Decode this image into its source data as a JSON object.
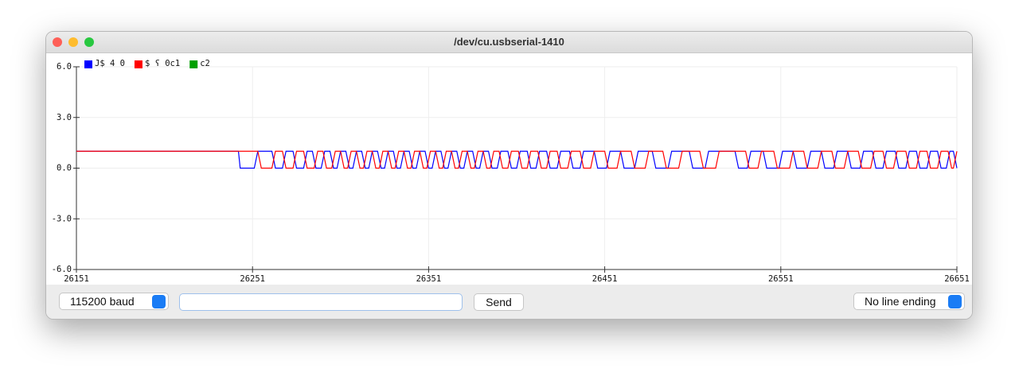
{
  "window": {
    "title": "/dev/cu.usbserial-1410"
  },
  "chart_data": {
    "type": "line",
    "xlim": [
      26151,
      26651
    ],
    "xticks": [
      26151,
      26251,
      26351,
      26451,
      26551,
      26651
    ],
    "ylim": [
      -6,
      6
    ],
    "yticks": [
      {
        "value": -6,
        "label": "-6.0"
      },
      {
        "value": -3,
        "label": "-3.0"
      },
      {
        "value": 0,
        "label": "0.0"
      },
      {
        "value": 3,
        "label": "3.0"
      },
      {
        "value": 6,
        "label": "6.0"
      }
    ],
    "grid": true,
    "legend": "top-left",
    "series": [
      {
        "name": "J$ 4 0",
        "color": "#0000ff",
        "x": [
          26151,
          26243,
          26244,
          26252,
          26254,
          26262,
          26264,
          26268,
          26270,
          26274,
          26276,
          26280,
          26282,
          26285,
          26287,
          26290,
          26292,
          26295,
          26297,
          26299,
          26301,
          26304,
          26306,
          26308,
          26310,
          26313,
          26315,
          26317,
          26319,
          26322,
          26324,
          26326,
          26328,
          26331,
          26333,
          26335,
          26337,
          26340,
          26342,
          26344,
          26346,
          26349,
          26351,
          26353,
          26355,
          26358,
          26360,
          26362,
          26364,
          26367,
          26369,
          26371,
          26373,
          26376,
          26378,
          26380,
          26382,
          26385,
          26387,
          26390,
          26392,
          26396,
          26398,
          26401,
          26403,
          26407,
          26409,
          26412,
          26414,
          26418,
          26420,
          26424,
          26426,
          26431,
          26433,
          26437,
          26439,
          26445,
          26447,
          26452,
          26454,
          26460,
          26462,
          26468,
          26470,
          26478,
          26480,
          26487,
          26489,
          26499,
          26501,
          26508,
          26510,
          26525,
          26527,
          26532,
          26534,
          26541,
          26543,
          26550,
          26552,
          26558,
          26560,
          26566,
          26568,
          26574,
          26576,
          26581,
          26583,
          26589,
          26591,
          26596,
          26598,
          26603,
          26605,
          26609,
          26611,
          26616,
          26618,
          26622,
          26624,
          26628,
          26630,
          26634,
          26636,
          26640,
          26642,
          26645,
          26647,
          26649,
          26651
        ],
        "values": [
          1,
          1,
          0,
          0,
          1,
          1,
          0,
          0,
          1,
          1,
          0,
          0,
          1,
          1,
          0,
          0,
          1,
          1,
          0,
          0,
          1,
          1,
          0,
          0,
          1,
          1,
          0,
          0,
          1,
          1,
          0,
          0,
          1,
          1,
          0,
          0,
          1,
          1,
          0,
          0,
          1,
          1,
          0,
          0,
          1,
          1,
          0,
          0,
          1,
          1,
          0,
          0,
          1,
          1,
          0,
          0,
          1,
          1,
          0,
          0,
          1,
          1,
          0,
          0,
          1,
          1,
          0,
          0,
          1,
          1,
          0,
          0,
          1,
          1,
          0,
          0,
          1,
          1,
          0,
          0,
          1,
          1,
          0,
          0,
          1,
          1,
          0,
          0,
          1,
          1,
          0,
          0,
          1,
          1,
          0,
          0,
          1,
          1,
          0,
          0,
          1,
          1,
          0,
          0,
          1,
          1,
          0,
          0,
          1,
          1,
          0,
          0,
          1,
          1,
          0,
          0,
          1,
          1,
          0,
          0,
          1,
          1,
          0,
          0,
          1,
          1,
          0,
          0,
          1,
          1,
          0
        ]
      },
      {
        "name": "$ ʕ 0c1",
        "color": "#ff0000",
        "x": [
          26151,
          26254,
          26256,
          26262,
          26264,
          26268,
          26270,
          26274,
          26276,
          26280,
          26282,
          26286,
          26288,
          26291,
          26293,
          26296,
          26298,
          26301,
          26303,
          26305,
          26307,
          26310,
          26312,
          26314,
          26316,
          26319,
          26321,
          26323,
          26325,
          26328,
          26330,
          26332,
          26334,
          26337,
          26339,
          26341,
          26343,
          26346,
          26348,
          26350,
          26352,
          26355,
          26357,
          26359,
          26361,
          26364,
          26366,
          26368,
          26370,
          26373,
          26375,
          26377,
          26379,
          26382,
          26384,
          26386,
          26388,
          26391,
          26393,
          26396,
          26398,
          26402,
          26404,
          26407,
          26409,
          26413,
          26415,
          26418,
          26420,
          26424,
          26426,
          26430,
          26432,
          26437,
          26439,
          26443,
          26445,
          26451,
          26453,
          26458,
          26460,
          26466,
          26468,
          26474,
          26476,
          26484,
          26486,
          26493,
          26495,
          26505,
          26507,
          26514,
          26516,
          26531,
          26533,
          26538,
          26540,
          26547,
          26549,
          26556,
          26558,
          26564,
          26566,
          26572,
          26574,
          26580,
          26582,
          26587,
          26589,
          26595,
          26597,
          26602,
          26604,
          26609,
          26611,
          26615,
          26617,
          26622,
          26624,
          26628,
          26630,
          26634,
          26636,
          26640,
          26642,
          26646,
          26648,
          26649,
          26651
        ],
        "values": [
          1,
          1,
          0,
          0,
          1,
          1,
          0,
          0,
          1,
          1,
          0,
          0,
          1,
          1,
          0,
          0,
          1,
          1,
          0,
          0,
          1,
          1,
          0,
          0,
          1,
          1,
          0,
          0,
          1,
          1,
          0,
          0,
          1,
          1,
          0,
          0,
          1,
          1,
          0,
          0,
          1,
          1,
          0,
          0,
          1,
          1,
          0,
          0,
          1,
          1,
          0,
          0,
          1,
          1,
          0,
          0,
          1,
          1,
          0,
          0,
          1,
          1,
          0,
          0,
          1,
          1,
          0,
          0,
          1,
          1,
          0,
          0,
          1,
          1,
          0,
          0,
          1,
          1,
          0,
          0,
          1,
          1,
          0,
          0,
          1,
          1,
          0,
          0,
          1,
          1,
          0,
          0,
          1,
          1,
          0,
          0,
          1,
          1,
          0,
          0,
          1,
          1,
          0,
          0,
          1,
          1,
          0,
          0,
          1,
          1,
          0,
          0,
          1,
          1,
          0,
          0,
          1,
          1,
          0,
          0,
          1,
          1,
          0,
          0,
          1,
          1,
          0,
          0,
          1
        ]
      },
      {
        "name": "c2",
        "color": "#00a000",
        "x": [],
        "values": []
      }
    ]
  },
  "controls": {
    "baud": "115200 baud",
    "send": "Send",
    "line_ending": "No line ending"
  }
}
